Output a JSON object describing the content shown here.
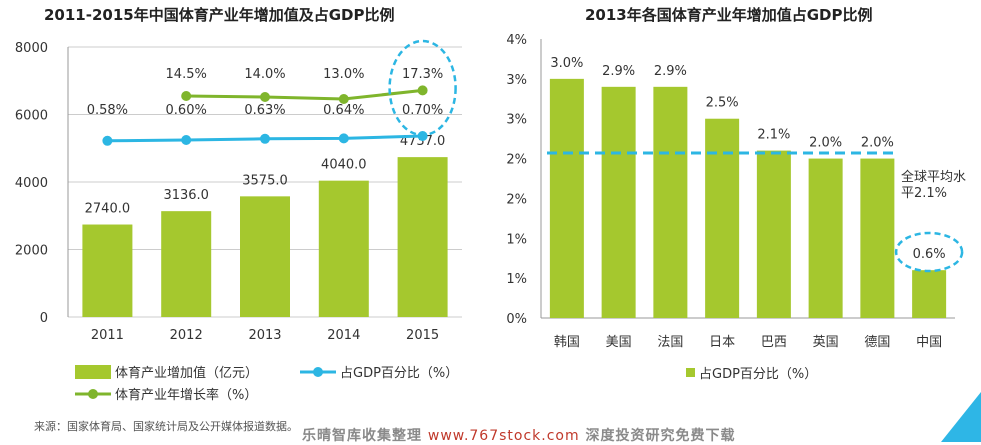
{
  "left_title": "2011-2015年中国体育产业年增加值及占GDP比例",
  "right_title": "2013年各国体育产业年增加值占GDP比例",
  "source": "来源：国家体育局、国家统计局及公开媒体报道数据。",
  "watermark": {
    "prefix": "乐晴智库收集整理 ",
    "url": "www.767stock.com",
    "suffix": " 深度投资研究免费下载"
  },
  "colors": {
    "bar": "#a5c82e",
    "line_gdp": "#2cb6e3",
    "line_growth": "#7fb52c",
    "grid": "#cccccc",
    "highlight": "#2cb6e3"
  },
  "chart_data": [
    {
      "type": "bar",
      "title": "2011-2015年中国体育产业年增加值及占GDP比例",
      "categories": [
        "2011",
        "2012",
        "2013",
        "2014",
        "2015"
      ],
      "y_ticks": [
        "0",
        "2000",
        "4000",
        "6000",
        "8000"
      ],
      "ylim": [
        0,
        8000
      ],
      "grid": true,
      "legend_position": "bottom",
      "series": [
        {
          "name": "体育产业增加值（亿元）",
          "type": "bar",
          "values": [
            2740.0,
            3136.0,
            3575.0,
            4040.0,
            4737.0
          ],
          "labels": [
            "2740.0",
            "3136.0",
            "3575.0",
            "4040.0",
            "4737.0"
          ]
        },
        {
          "name": "占GDP百分比（%）",
          "type": "line",
          "values": [
            0.58,
            0.6,
            0.63,
            0.64,
            0.7
          ],
          "labels": [
            "0.58%",
            "0.60%",
            "0.63%",
            "0.64%",
            "0.70%"
          ]
        },
        {
          "name": "体育产业年增长率（%）",
          "type": "line",
          "values": [
            null,
            14.5,
            14.0,
            13.0,
            17.3
          ],
          "labels": [
            "",
            "14.5%",
            "14.0%",
            "13.0%",
            "17.3%"
          ]
        }
      ]
    },
    {
      "type": "bar",
      "title": "2013年各国体育产业年增加值占GDP比例",
      "categories": [
        "韩国",
        "美国",
        "法国",
        "日本",
        "巴西",
        "英国",
        "德国",
        "中国"
      ],
      "y_ticks": [
        "0%",
        "1%",
        "1%",
        "2%",
        "2%",
        "3%",
        "3%",
        "4%"
      ],
      "ylim": [
        0,
        3.5
      ],
      "grid": false,
      "legend_position": "bottom",
      "series": [
        {
          "name": "占GDP百分比（%）",
          "type": "bar",
          "values": [
            3.0,
            2.9,
            2.9,
            2.5,
            2.1,
            2.0,
            2.0,
            0.6
          ],
          "labels": [
            "3.0%",
            "2.9%",
            "2.9%",
            "2.5%",
            "2.1%",
            "2.0%",
            "2.0%",
            "0.6%"
          ]
        }
      ],
      "reference_line": {
        "value": 2.1,
        "label_lines": [
          "全球平均水",
          "平2.1%"
        ]
      }
    }
  ]
}
